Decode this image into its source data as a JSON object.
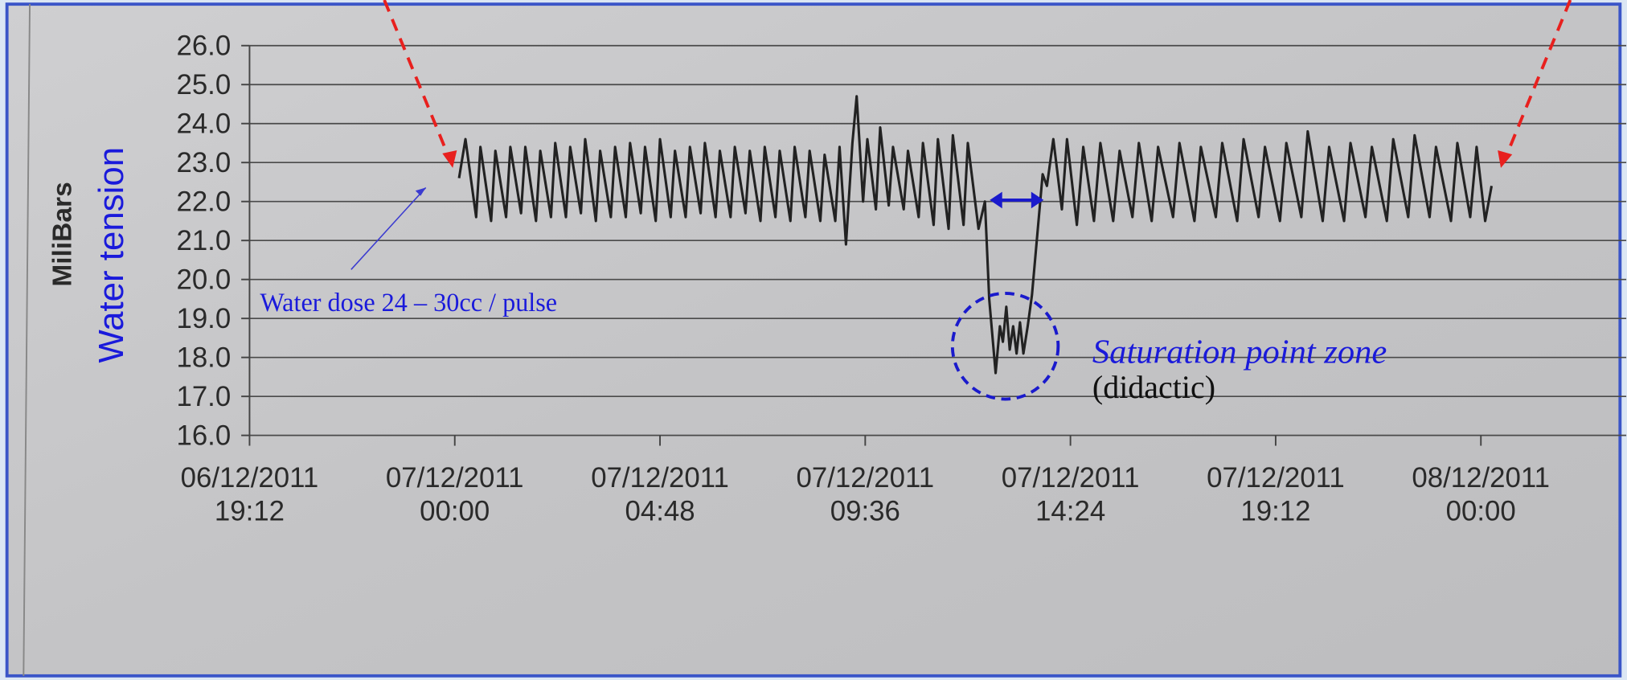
{
  "chart_data": {
    "type": "line",
    "ylabel": "MiliBars",
    "annotations": [
      "Water tension",
      "Water dose 24 – 30cc / pulse",
      "Saturation point zone",
      "(didactic)"
    ],
    "color": "#222222",
    "grid": true,
    "ylim": [
      16,
      26
    ],
    "yticks": [
      {
        "value": 16,
        "label": "16.0"
      },
      {
        "value": 17,
        "label": "17.0"
      },
      {
        "value": 18,
        "label": "18.0"
      },
      {
        "value": 19,
        "label": "19.0"
      },
      {
        "value": 20,
        "label": "20.0"
      },
      {
        "value": 21,
        "label": "21.0"
      },
      {
        "value": 22,
        "label": "22.0"
      },
      {
        "value": 23,
        "label": "23.0"
      },
      {
        "value": 24,
        "label": "24.0"
      },
      {
        "value": 25,
        "label": "25.0"
      },
      {
        "value": 26,
        "label": "26.0"
      }
    ],
    "xlim": [
      0,
      32.2
    ],
    "xticks": [
      {
        "value": 0,
        "label": "06/12/2011 19:12"
      },
      {
        "value": 4.8,
        "label": "07/12/2011 00:00"
      },
      {
        "value": 9.6,
        "label": "07/12/2011 04:48"
      },
      {
        "value": 14.4,
        "label": "07/12/2011 09:36"
      },
      {
        "value": 19.2,
        "label": "07/12/2011 14:24"
      },
      {
        "value": 24,
        "label": "07/12/2011 19:12"
      },
      {
        "value": 28.8,
        "label": "08/12/2011 00:00"
      }
    ],
    "x": [
      4.9,
      5.05,
      5.3,
      5.4,
      5.65,
      5.75,
      6.0,
      6.1,
      6.35,
      6.45,
      6.7,
      6.8,
      7.05,
      7.15,
      7.4,
      7.5,
      7.75,
      7.85,
      8.1,
      8.2,
      8.45,
      8.55,
      8.8,
      8.9,
      9.15,
      9.25,
      9.5,
      9.6,
      9.85,
      9.95,
      10.2,
      10.3,
      10.55,
      10.65,
      10.9,
      11.0,
      11.25,
      11.35,
      11.6,
      11.7,
      11.95,
      12.05,
      12.3,
      12.4,
      12.65,
      12.75,
      13.0,
      13.1,
      13.35,
      13.45,
      13.7,
      13.8,
      13.95,
      14.1,
      14.2,
      14.35,
      14.45,
      14.65,
      14.75,
      14.95,
      15.05,
      15.3,
      15.4,
      15.65,
      15.75,
      16.0,
      16.1,
      16.35,
      16.45,
      16.7,
      16.8,
      17.05,
      17.2,
      17.3,
      17.45,
      17.55,
      17.62,
      17.7,
      17.78,
      17.86,
      17.94,
      18.02,
      18.1,
      18.2,
      18.3,
      18.55,
      18.65,
      18.8,
      19.0,
      19.12,
      19.35,
      19.5,
      19.75,
      19.9,
      20.2,
      20.35,
      20.65,
      20.8,
      21.1,
      21.25,
      21.6,
      21.75,
      22.1,
      22.25,
      22.6,
      22.75,
      23.1,
      23.25,
      23.6,
      23.75,
      24.1,
      24.25,
      24.6,
      24.75,
      25.1,
      25.25,
      25.6,
      25.75,
      26.1,
      26.25,
      26.6,
      26.75,
      27.1,
      27.25,
      27.6,
      27.75,
      28.1,
      28.25,
      28.55,
      28.7,
      28.9,
      29.05
    ],
    "values": [
      22.6,
      23.6,
      21.6,
      23.4,
      21.5,
      23.3,
      21.6,
      23.4,
      21.7,
      23.4,
      21.5,
      23.3,
      21.6,
      23.5,
      21.6,
      23.4,
      21.7,
      23.6,
      21.5,
      23.3,
      21.6,
      23.4,
      21.6,
      23.5,
      21.7,
      23.4,
      21.5,
      23.6,
      21.6,
      23.3,
      21.6,
      23.4,
      21.7,
      23.5,
      21.6,
      23.3,
      21.6,
      23.4,
      21.7,
      23.3,
      21.5,
      23.4,
      21.6,
      23.3,
      21.5,
      23.4,
      21.6,
      23.3,
      21.5,
      23.2,
      21.5,
      23.4,
      20.9,
      23.5,
      24.7,
      22.0,
      23.6,
      21.8,
      23.9,
      21.9,
      23.4,
      21.8,
      23.3,
      21.6,
      23.5,
      21.4,
      23.6,
      21.3,
      23.7,
      21.4,
      23.5,
      21.3,
      22.0,
      19.5,
      17.6,
      18.8,
      18.4,
      19.3,
      18.2,
      18.8,
      18.1,
      18.9,
      18.1,
      18.8,
      19.6,
      22.7,
      22.4,
      23.6,
      21.8,
      23.6,
      21.4,
      23.4,
      21.5,
      23.5,
      21.5,
      23.3,
      21.6,
      23.5,
      21.5,
      23.4,
      21.6,
      23.5,
      21.5,
      23.4,
      21.6,
      23.5,
      21.5,
      23.6,
      21.6,
      23.4,
      21.5,
      23.5,
      21.6,
      23.8,
      21.5,
      23.4,
      21.5,
      23.5,
      21.6,
      23.4,
      21.5,
      23.6,
      21.6,
      23.7,
      21.6,
      23.4,
      21.5,
      23.5,
      21.6,
      23.4,
      21.5,
      22.4
    ]
  }
}
